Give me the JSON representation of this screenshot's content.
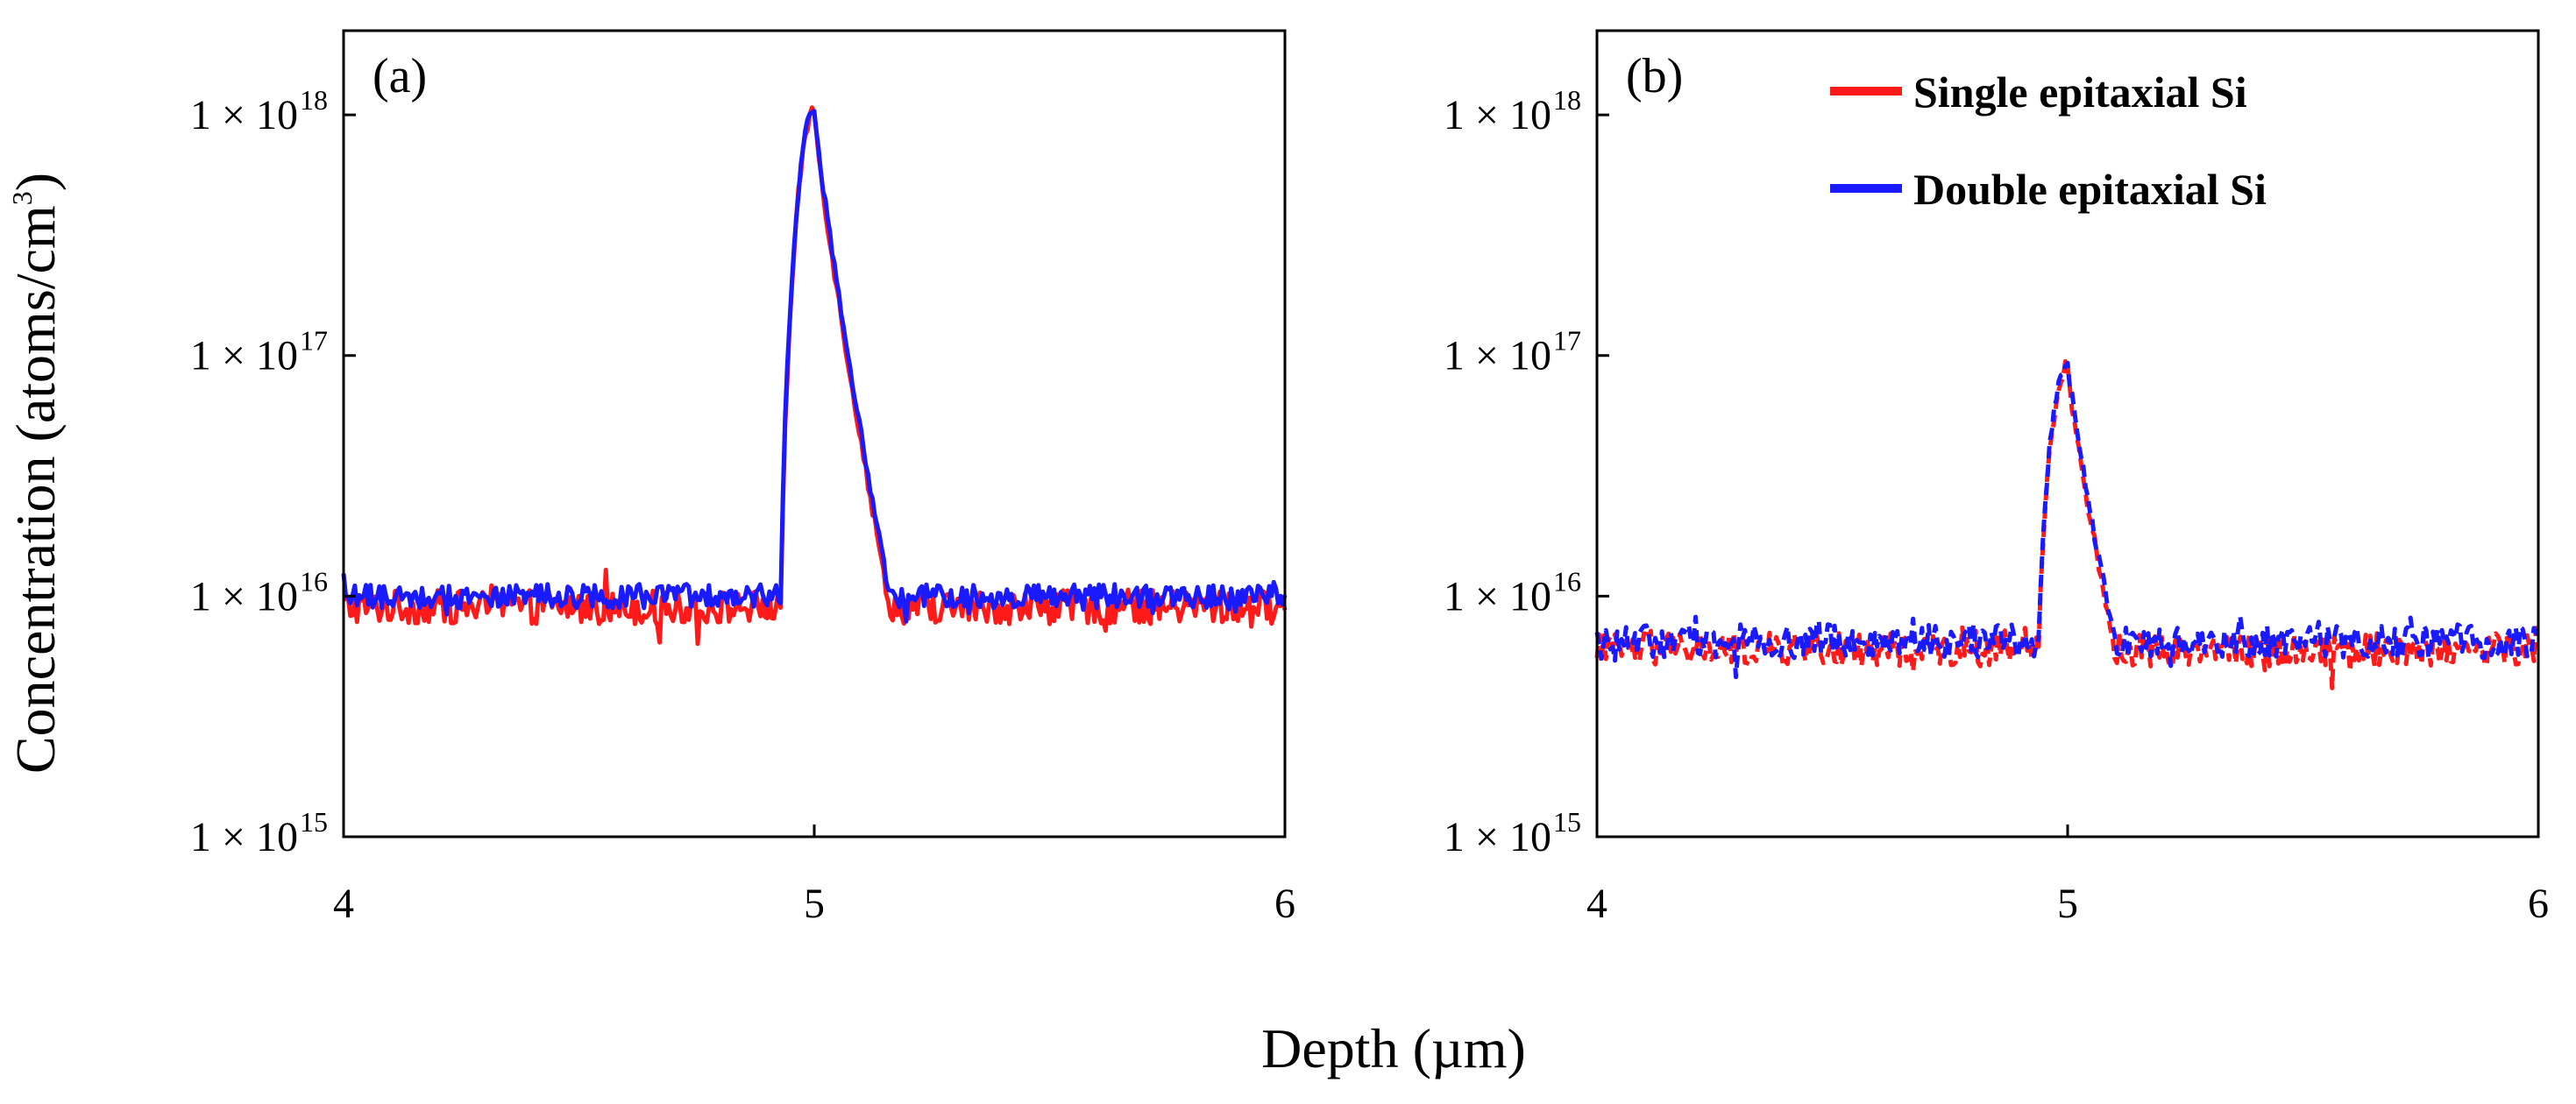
{
  "chart_data": {
    "shared": {
      "ylabel_prefix": "Concentration (atoms/cm",
      "ylabel_exp": "3",
      "ylabel_suffix": ")",
      "xlabel": "Depth (µm)",
      "x_ticks": [
        "4",
        "5",
        "6"
      ],
      "y_ticks": [
        {
          "mantissa": "1 × 10",
          "exp": "18"
        },
        {
          "mantissa": "1 × 10",
          "exp": "17"
        },
        {
          "mantissa": "1 × 10",
          "exp": "16"
        },
        {
          "mantissa": "1 × 10",
          "exp": "15"
        }
      ],
      "xlim": [
        4,
        6
      ],
      "ylim_log10": [
        15,
        18.35
      ],
      "colors": {
        "single": "#ff1a1a",
        "double": "#1a1aff"
      }
    },
    "panels": [
      {
        "type": "line",
        "label": "(a)",
        "line_style": "solid",
        "legend": null,
        "series": [
          {
            "name": "Single epitaxial Si",
            "color": "#ff1a1a",
            "profile": {
              "baseline": 9000000000000000.0,
              "peak": 1.05e+18,
              "peak_x": 5.0,
              "rise_start": 4.93,
              "fall_end": 5.16,
              "noise": 0.07
            }
          },
          {
            "name": "Double epitaxial Si",
            "color": "#1a1aff",
            "profile": {
              "baseline": 1e+16,
              "peak": 1.08e+18,
              "peak_x": 5.0,
              "rise_start": 4.93,
              "fall_end": 5.16,
              "noise": 0.05
            }
          }
        ]
      },
      {
        "type": "line",
        "label": "(b)",
        "line_style": "dashed",
        "legend": {
          "position": "top-right",
          "entries": [
            "Single epitaxial Si",
            "Double epitaxial Si"
          ]
        },
        "series": [
          {
            "name": "Single epitaxial Si",
            "color": "#ff1a1a",
            "profile": {
              "baseline": 6000000000000000.0,
              "peak": 9e+16,
              "peak_x": 5.0,
              "rise_start": 4.94,
              "fall_end": 5.1,
              "noise": 0.07
            }
          },
          {
            "name": "Double epitaxial Si",
            "color": "#1a1aff",
            "profile": {
              "baseline": 6500000000000000.0,
              "peak": 9.5e+16,
              "peak_x": 5.0,
              "rise_start": 4.94,
              "fall_end": 5.1,
              "noise": 0.07
            }
          }
        ]
      }
    ]
  }
}
